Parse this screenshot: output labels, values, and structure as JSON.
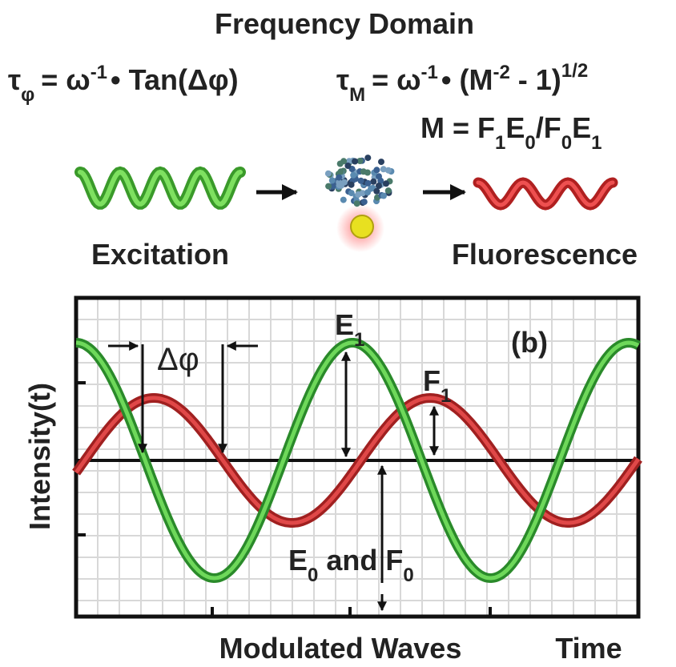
{
  "title": "Frequency Domain",
  "formula_phase": {
    "tau": "τ",
    "tau_sub": "φ",
    "eq": "= ω",
    "exp": "-1",
    "rest": "• Tan(Δφ)"
  },
  "formula_mod": {
    "tau": "τ",
    "tau_sub": "M",
    "eq": "= ω",
    "exp": "-1",
    "mid": "• (M",
    "exp2": "-2",
    "rest": "- 1)",
    "exp3": "1/2"
  },
  "formula_m": {
    "lhs": "M = F",
    "s1": "1",
    "a": "E",
    "s2": "0",
    "b": "/F",
    "s3": "0",
    "c": "E",
    "s4": "1"
  },
  "labels": {
    "excitation": "Excitation",
    "fluorescence": "Fluorescence"
  },
  "plot": {
    "panel": "(b)",
    "y_label": "Intensity(t)",
    "x_label": "Modulated Waves",
    "x_unit": "Time",
    "phase_shift": "Δφ",
    "e1": "E",
    "e1_sub": "1",
    "f1": "F",
    "f1_sub": "1",
    "baseline": {
      "e": "E",
      "e_sub": "0",
      "and": "and F",
      "f_sub": "0"
    }
  }
}
